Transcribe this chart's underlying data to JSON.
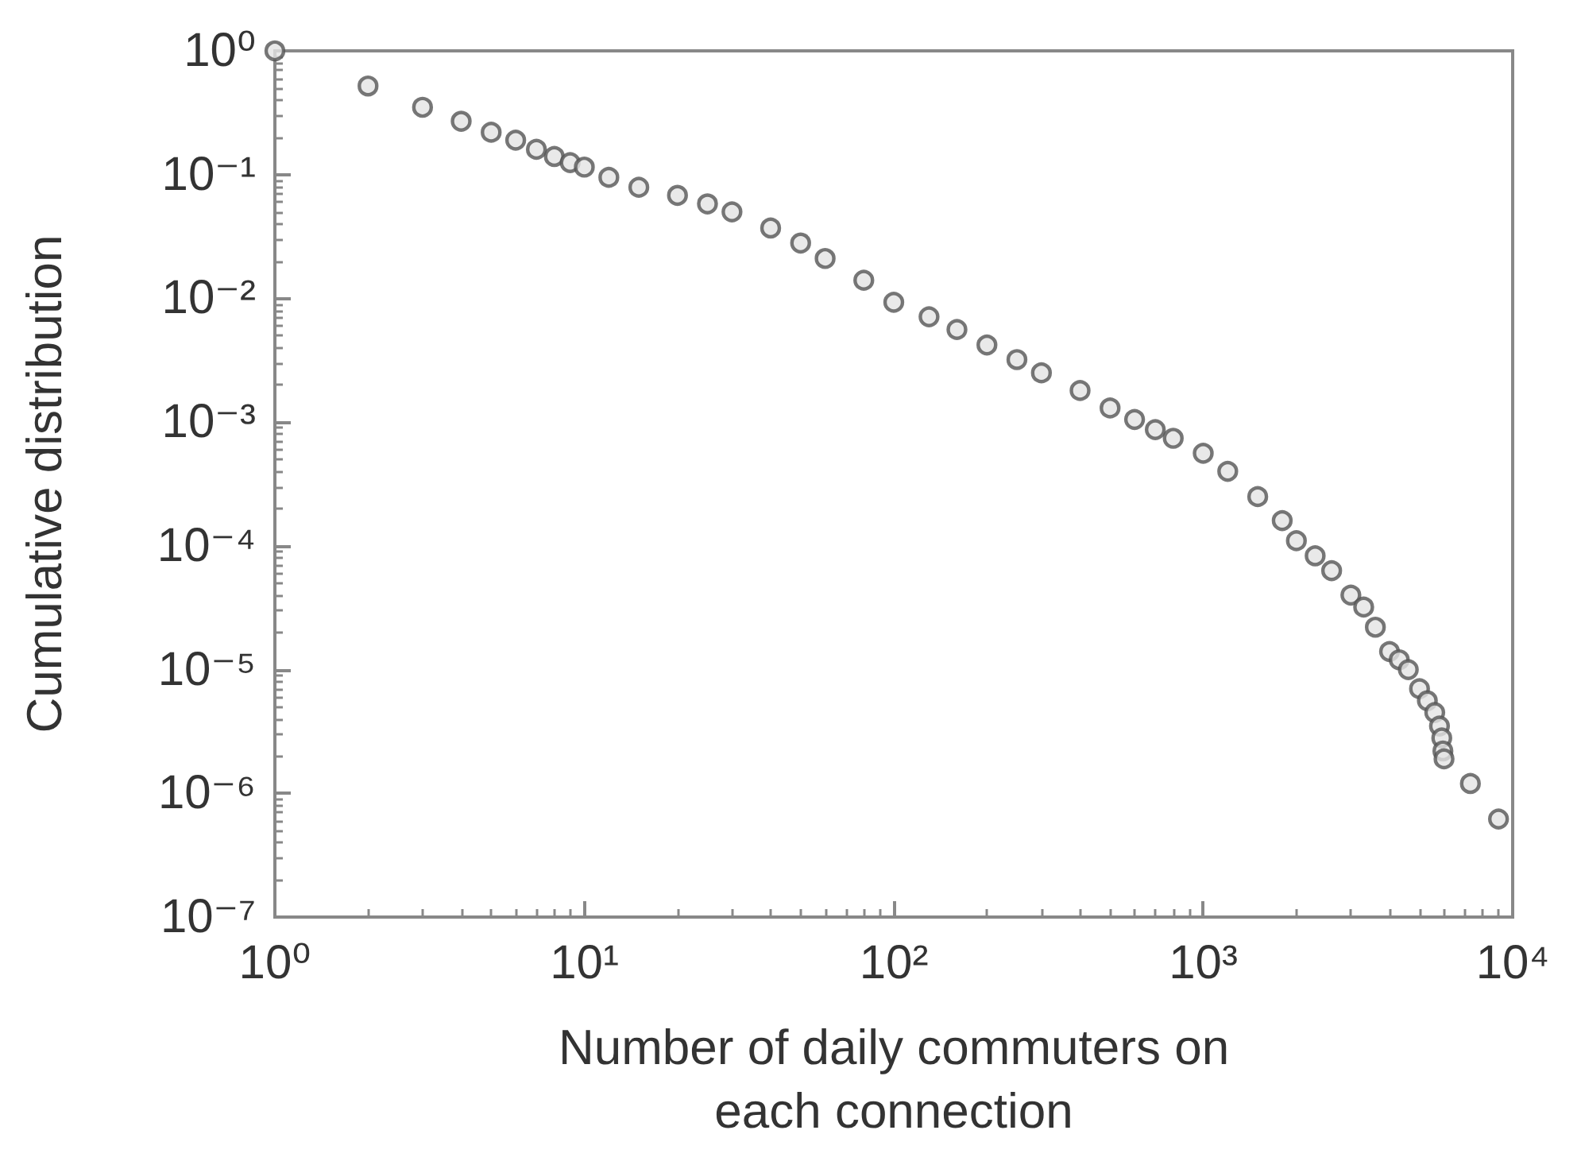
{
  "chart_data": {
    "type": "scatter",
    "xlabel": "Number of daily commuters on each connection",
    "ylabel": "Cumulative distribution",
    "log": "xy",
    "marker": "circle",
    "xlim": [
      1,
      10000
    ],
    "xticks": [
      {
        "value": 1,
        "label": "10⁰"
      },
      {
        "value": 10,
        "label": "10¹"
      },
      {
        "value": 100,
        "label": "10²"
      },
      {
        "value": 1000,
        "label": "10³"
      },
      {
        "value": 10000,
        "label": "10⁴"
      }
    ],
    "ylim": [
      1e-07,
      1
    ],
    "yticks": [
      {
        "value": 1e-07,
        "label": "10⁻⁷"
      },
      {
        "value": 1e-06,
        "label": "10⁻⁶"
      },
      {
        "value": 1e-05,
        "label": "10⁻⁵"
      },
      {
        "value": 0.0001,
        "label": "10⁻⁴"
      },
      {
        "value": 0.001,
        "label": "10⁻³"
      },
      {
        "value": 0.01,
        "label": "10⁻²"
      },
      {
        "value": 0.1,
        "label": "10⁻¹"
      },
      {
        "value": 1,
        "label": "10⁰"
      }
    ],
    "series": [
      {
        "color": "#555555",
        "x": [
          1,
          2,
          3,
          4,
          5,
          6,
          7,
          8,
          9,
          10,
          12,
          15,
          20,
          25,
          30,
          40,
          50,
          60,
          80,
          100,
          130,
          160,
          200,
          250,
          300,
          400,
          500,
          600,
          700,
          800,
          1000,
          1200,
          1500,
          1800,
          2000,
          2300,
          2600,
          3000,
          3300,
          3600,
          4000,
          4300,
          4600,
          5000,
          5300,
          5600,
          5800,
          5900,
          5950,
          6000,
          7300,
          9000
        ],
        "values": [
          1,
          0.52,
          0.35,
          0.27,
          0.22,
          0.19,
          0.16,
          0.14,
          0.125,
          0.115,
          0.095,
          0.079,
          0.068,
          0.058,
          0.05,
          0.037,
          0.028,
          0.021,
          0.014,
          0.0093,
          0.0071,
          0.0056,
          0.0042,
          0.0032,
          0.0025,
          0.0018,
          0.0013,
          0.00105,
          0.00087,
          0.00074,
          0.00056,
          0.0004,
          0.00025,
          0.00016,
          0.00011,
          8.3e-05,
          6.3e-05,
          4e-05,
          3.2e-05,
          2.2e-05,
          1.4e-05,
          1.2e-05,
          1e-05,
          7e-06,
          5.6e-06,
          4.5e-06,
          3.5e-06,
          2.8e-06,
          2.2e-06,
          1.9e-06,
          1.2e-06,
          6.2e-07
        ]
      }
    ]
  }
}
